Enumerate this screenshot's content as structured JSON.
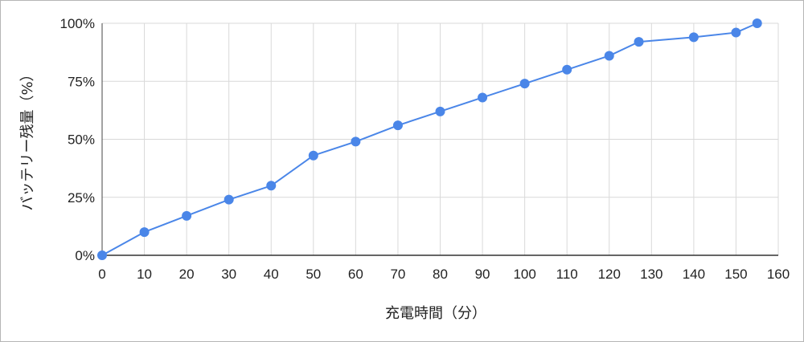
{
  "chart_data": {
    "type": "line",
    "title": "",
    "xlabel": "充電時間（分）",
    "ylabel": "バッテリー残量（%）",
    "xlim": [
      0,
      160
    ],
    "ylim": [
      0,
      100
    ],
    "x_ticks": [
      0,
      10,
      20,
      30,
      40,
      50,
      60,
      70,
      80,
      90,
      100,
      110,
      120,
      130,
      140,
      150,
      160
    ],
    "y_ticks": [
      0,
      25,
      50,
      75,
      100
    ],
    "y_tick_labels": [
      "0%",
      "25%",
      "50%",
      "75%",
      "100%"
    ],
    "grid": true,
    "legend": "none",
    "series": [
      {
        "color": "#4a86e8",
        "points": [
          {
            "x": 0,
            "y": 0
          },
          {
            "x": 10,
            "y": 10
          },
          {
            "x": 20,
            "y": 17
          },
          {
            "x": 30,
            "y": 24
          },
          {
            "x": 40,
            "y": 30
          },
          {
            "x": 50,
            "y": 43
          },
          {
            "x": 60,
            "y": 49
          },
          {
            "x": 70,
            "y": 56
          },
          {
            "x": 80,
            "y": 62
          },
          {
            "x": 90,
            "y": 68
          },
          {
            "x": 100,
            "y": 74
          },
          {
            "x": 110,
            "y": 80
          },
          {
            "x": 120,
            "y": 86
          },
          {
            "x": 127,
            "y": 92
          },
          {
            "x": 140,
            "y": 94
          },
          {
            "x": 150,
            "y": 96
          },
          {
            "x": 155,
            "y": 100
          }
        ]
      }
    ]
  }
}
